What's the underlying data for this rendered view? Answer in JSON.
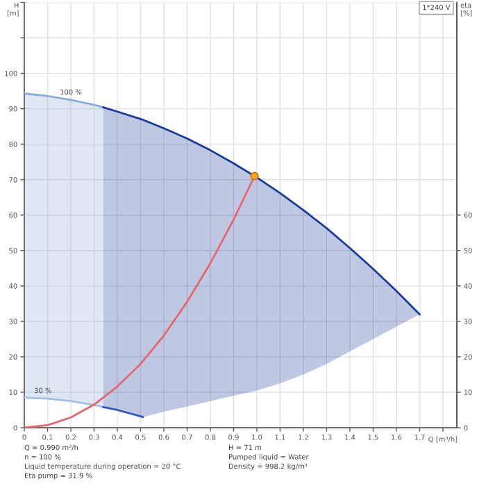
{
  "chart_data": {
    "type": "line",
    "xlabel": "Q [m³/h]",
    "ylabel": "H\n[m]",
    "y2label": "eta\n[%]",
    "xlim": [
      0,
      1.86
    ],
    "xticks": [
      0,
      0.1,
      0.2,
      0.3,
      0.4,
      0.5,
      0.6,
      0.7,
      0.8,
      0.9,
      {
        "value": 1.0,
        "label": "1.0"
      },
      1.1,
      1.2,
      1.3,
      1.4,
      1.5,
      1.6,
      1.7,
      {
        "value": 1.8,
        "label": null
      }
    ],
    "ylim": [
      0,
      120
    ],
    "yticks": [
      0,
      10,
      20,
      30,
      40,
      50,
      60,
      70,
      80,
      90,
      100,
      {
        "value": 110,
        "label": null
      },
      {
        "value": 120,
        "label": null
      }
    ],
    "y2lim": [
      0,
      120
    ],
    "y2ticks": [
      0,
      10,
      20,
      30,
      40,
      50,
      60
    ],
    "grid": true,
    "series": [
      {
        "color": "#86acd8",
        "x": [
          0,
          0.1,
          0.2,
          0.3,
          0.34
        ],
        "values": [
          94.3,
          93.6,
          92.5,
          91.1,
          90.4
        ],
        "lower": [
          8.5,
          8.2,
          7.5,
          6.4,
          5.8
        ],
        "upper": [
          94.3,
          93.6,
          92.5,
          91.1,
          90.4
        ]
      },
      {
        "color": "#1a3a9c",
        "x": [
          0.34,
          0.4,
          0.5,
          0.51,
          0.6,
          0.7,
          0.8,
          0.9,
          1.0,
          1.1,
          1.2,
          1.3,
          1.4,
          1.5,
          1.6,
          1.7
        ],
        "values": [
          90.4,
          89.2,
          87.1,
          86.9,
          84.5,
          81.6,
          78.3,
          74.6,
          70.6,
          66.2,
          61.4,
          56.3,
          50.7,
          44.8,
          38.6,
          32
        ],
        "lower": [
          5.8,
          5.0,
          3.2,
          3.0,
          4.5,
          6,
          7.5,
          9,
          10.5,
          12.5,
          15,
          18,
          21.5,
          25,
          28.5,
          32
        ],
        "upper": [
          90.4,
          89.2,
          87.1,
          86.9,
          84.5,
          81.6,
          78.3,
          74.6,
          70.6,
          66.2,
          61.4,
          56.3,
          50.7,
          44.8,
          38.6,
          32
        ]
      },
      {
        "color": "#a0c0e6",
        "x": [
          0,
          0.1,
          0.2,
          0.3,
          0.34
        ],
        "values": [
          8.5,
          8.2,
          7.5,
          6.4,
          5.8
        ]
      },
      {
        "color": "#3355c0",
        "x": [
          0.34,
          0.4,
          0.5,
          0.51
        ],
        "values": [
          5.8,
          5.0,
          3.2,
          3.0
        ]
      },
      {
        "color": "#e8646e",
        "x": [
          0,
          0.1,
          0.2,
          0.3,
          0.4,
          0.5,
          0.6,
          0.7,
          0.8,
          0.9,
          0.99
        ],
        "values": [
          0,
          0.7,
          2.9,
          6.5,
          11.6,
          18,
          26,
          35.5,
          46.4,
          58.7,
          71
        ]
      },
      {
        "type": "scatter",
        "color": "#f5a623",
        "marker": "circle",
        "x": [
          0.99
        ],
        "values": [
          71
        ]
      }
    ],
    "annotations": [
      {
        "text": "100 %",
        "x": 0.2,
        "y": 92.5
      },
      {
        "text": "30 %",
        "x": 0.08,
        "y": 8.3
      },
      "1*240 V",
      "Q = 0.990 m³/h\nn = 100 %\nLiquid temperature during operation = 20 °C\nEta pump = 31.9 %",
      "H = 71 m\nPumped liquid = Water\nDensity = 998.2 kg/m³"
    ]
  }
}
